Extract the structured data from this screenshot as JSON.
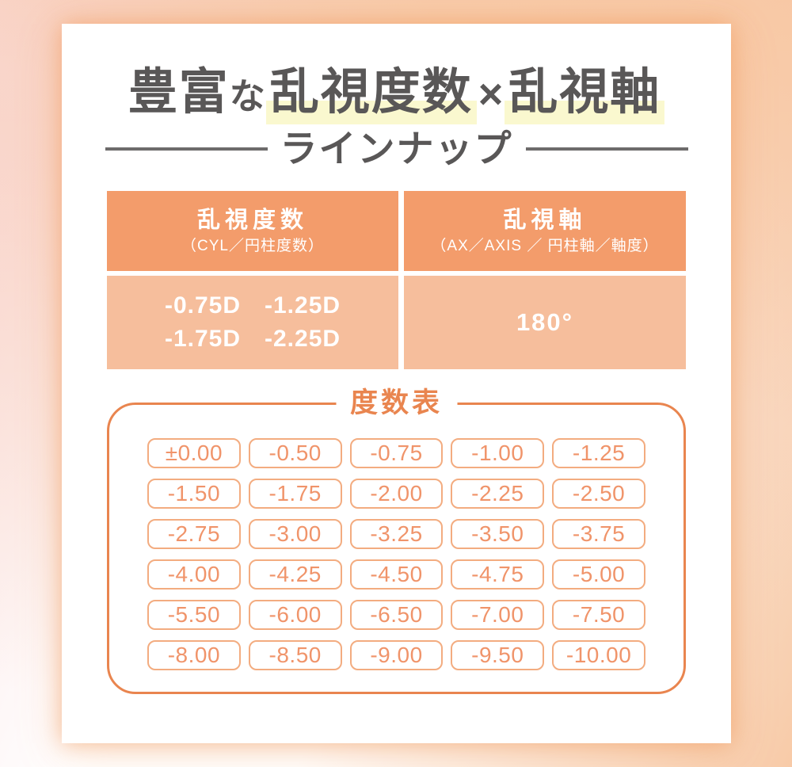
{
  "colors": {
    "header_orange": "#F39C6B",
    "body_orange": "#F6BE9C",
    "outline_orange": "#E9854F",
    "pill_border_orange": "#F3AC80",
    "pill_text_orange": "#F0946A",
    "title_gray": "#595757",
    "highlight_yellow": "#FAF8CF"
  },
  "title": {
    "lead": "豊富",
    "particle": "な",
    "highlight_1": "乱視度数",
    "separator": "×",
    "highlight_2": "乱視軸",
    "subtitle": "ラインナップ"
  },
  "spec_table": {
    "cyl": {
      "header": "乱視度数",
      "subheader": "（CYL／円柱度数）",
      "values": [
        "-0.75D",
        "-1.25D",
        "-1.75D",
        "-2.25D"
      ]
    },
    "axis": {
      "header": "乱視軸",
      "subheader": "（AX／AXIS ／ 円柱軸／軸度）",
      "value": "180°"
    }
  },
  "power_chart": {
    "type": "table",
    "title": "度数表",
    "rows": 6,
    "columns": 5,
    "values": [
      "±0.00",
      "-0.50",
      "-0.75",
      "-1.00",
      "-1.25",
      "-1.50",
      "-1.75",
      "-2.00",
      "-2.25",
      "-2.50",
      "-2.75",
      "-3.00",
      "-3.25",
      "-3.50",
      "-3.75",
      "-4.00",
      "-4.25",
      "-4.50",
      "-4.75",
      "-5.00",
      "-5.50",
      "-6.00",
      "-6.50",
      "-7.00",
      "-7.50",
      "-8.00",
      "-8.50",
      "-9.00",
      "-9.50",
      "-10.00"
    ]
  }
}
